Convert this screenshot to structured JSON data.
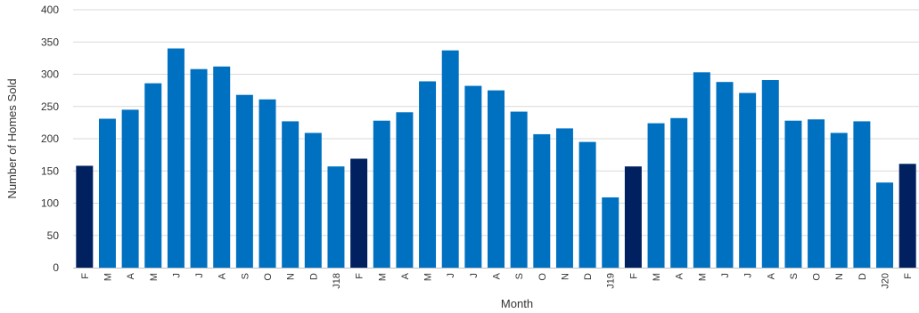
{
  "chart_data": {
    "type": "bar",
    "title": "",
    "xlabel": "Month",
    "ylabel": "Number of Homes Sold",
    "ylim": [
      0,
      400
    ],
    "yticks": [
      0,
      50,
      100,
      150,
      200,
      250,
      300,
      350,
      400
    ],
    "grid": true,
    "colors": {
      "regular": "#0070c0",
      "highlight": "#002060"
    },
    "categories": [
      "F",
      "M",
      "A",
      "M",
      "J",
      "J",
      "A",
      "S",
      "O",
      "N",
      "D",
      "J18",
      "F",
      "M",
      "A",
      "M",
      "J",
      "J",
      "A",
      "S",
      "O",
      "N",
      "D",
      "J19",
      "F",
      "M",
      "A",
      "M",
      "J",
      "J",
      "A",
      "S",
      "O",
      "N",
      "D",
      "J20",
      "F"
    ],
    "values": [
      158,
      231,
      245,
      286,
      340,
      308,
      312,
      268,
      261,
      227,
      209,
      157,
      169,
      228,
      241,
      289,
      337,
      282,
      275,
      242,
      207,
      216,
      195,
      109,
      157,
      224,
      232,
      303,
      288,
      271,
      291,
      228,
      230,
      209,
      227,
      132,
      161
    ],
    "highlighted": [
      true,
      false,
      false,
      false,
      false,
      false,
      false,
      false,
      false,
      false,
      false,
      false,
      true,
      false,
      false,
      false,
      false,
      false,
      false,
      false,
      false,
      false,
      false,
      false,
      true,
      false,
      false,
      false,
      false,
      false,
      false,
      false,
      false,
      false,
      false,
      false,
      true
    ]
  }
}
